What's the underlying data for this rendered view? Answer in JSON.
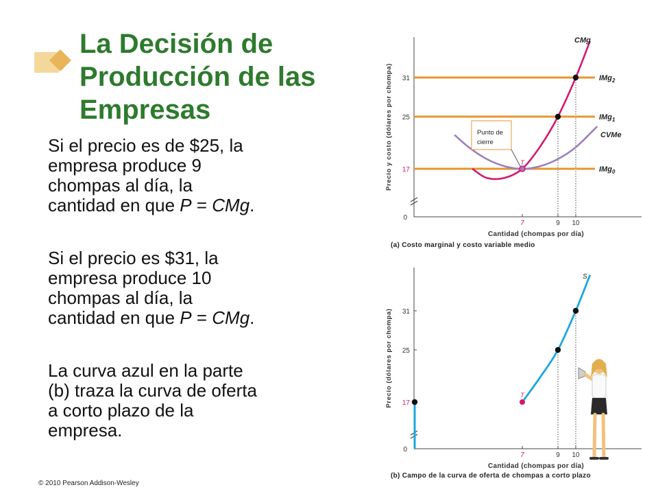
{
  "slide": {
    "title_lines": [
      "La Decisión de",
      "Producción de las",
      "Empresas"
    ],
    "paragraphs": [
      {
        "lines": [
          {
            "before": "Si el precio es de $25, la",
            "italic": "",
            "after": ""
          },
          {
            "before": "empresa produce 9",
            "italic": "",
            "after": ""
          },
          {
            "before": "chompas al día, la",
            "italic": "",
            "after": ""
          },
          {
            "before": "cantidad en que ",
            "italic": "P",
            "after": " = ",
            "italic2": "CMg",
            "after2": "."
          }
        ]
      },
      {
        "lines": [
          {
            "before": "Si el precio es $31, la",
            "italic": "",
            "after": ""
          },
          {
            "before": "empresa produce 10",
            "italic": "",
            "after": ""
          },
          {
            "before": "chompas al día, la",
            "italic": "",
            "after": ""
          },
          {
            "before": "cantidad en que ",
            "italic": "P",
            "after": " = ",
            "italic2": "CMg",
            "after2": "."
          }
        ]
      },
      {
        "lines": [
          {
            "before": "La curva azul en la parte",
            "italic": "",
            "after": ""
          },
          {
            "before": "(b) traza la curva de oferta",
            "italic": "",
            "after": ""
          },
          {
            "before": "a corto plazo de la",
            "italic": "",
            "after": ""
          },
          {
            "before": "empresa.",
            "italic": "",
            "after": ""
          }
        ]
      }
    ],
    "copyright": "© 2010 Pearson Addison-Wesley"
  },
  "colors": {
    "title": "#2e7a2e",
    "mc_curve": "#d4186e",
    "avc_curve": "#9b7fbf",
    "mr_lines": "#e8962f",
    "supply_curve": "#1aa7dc",
    "price_ticks": "#d4186e"
  },
  "chart_data": [
    {
      "type": "line",
      "title": "(a) Costo marginal y costo variable medio",
      "xlabel": "Cantidad (chompas por día)",
      "ylabel": "Precio y costo (dólares por chompa)",
      "x_ticks": [
        "0",
        "7",
        "9",
        "10"
      ],
      "y_ticks": [
        "17",
        "25",
        "31"
      ],
      "x_break": true,
      "y_break": true,
      "series": [
        {
          "name": "CMg",
          "label_main": "CMg",
          "label_sub": "",
          "kind": "curve",
          "x": [
            4.2,
            5,
            6,
            7,
            8,
            9,
            10,
            10.8
          ],
          "y": [
            17.0,
            15.6,
            15.6,
            17,
            20.4,
            25,
            31,
            36.6
          ]
        },
        {
          "name": "CVMe",
          "label_main": "CVMe",
          "label_sub": "",
          "kind": "curve",
          "x": [
            3.2,
            4,
            5,
            6,
            7,
            8,
            9,
            10,
            11.2
          ],
          "y": [
            22.2,
            20.3,
            18.5,
            17.4,
            17,
            17.4,
            18.5,
            20.3,
            23.5
          ]
        },
        {
          "name": "IMg2",
          "label_main": "IMg",
          "label_sub": "2",
          "kind": "hline",
          "y": 31
        },
        {
          "name": "IMg1",
          "label_main": "IMg",
          "label_sub": "1",
          "kind": "hline",
          "y": 25
        },
        {
          "name": "IMg0",
          "label_main": "IMg",
          "label_sub": "0",
          "kind": "hline",
          "y": 17
        }
      ],
      "points": [
        {
          "x": 7,
          "y": 17,
          "label": "T"
        },
        {
          "x": 9,
          "y": 25,
          "label": ""
        },
        {
          "x": 10,
          "y": 31,
          "label": ""
        }
      ],
      "annotation": {
        "text_lines": [
          "Punto de",
          "cierre"
        ],
        "points_to": {
          "x": 7,
          "y": 17
        }
      }
    },
    {
      "type": "line",
      "title": "(b) Campo de la curva de oferta de chompas a corto plazo",
      "xlabel": "Cantidad (chompas por día)",
      "ylabel": "Precio (dólares por chompa)",
      "x_ticks": [
        "0",
        "7",
        "9",
        "10"
      ],
      "y_ticks": [
        "17",
        "25",
        "31"
      ],
      "x_break": true,
      "y_break": true,
      "series": [
        {
          "name": "S",
          "label_main": "S",
          "label_sub": "",
          "kind": "curve",
          "x": [
            7,
            8,
            9,
            10,
            10.8
          ],
          "y": [
            17,
            20.8,
            25,
            31,
            36.5
          ]
        }
      ],
      "points": [
        {
          "x": 0,
          "y": 17,
          "label": ""
        },
        {
          "x": 7,
          "y": 17,
          "label": "T"
        },
        {
          "x": 9,
          "y": 25,
          "label": ""
        },
        {
          "x": 10,
          "y": 31,
          "label": ""
        }
      ],
      "vertical_segment": {
        "x": 0,
        "y_from": 11,
        "y_to": 17
      }
    }
  ]
}
